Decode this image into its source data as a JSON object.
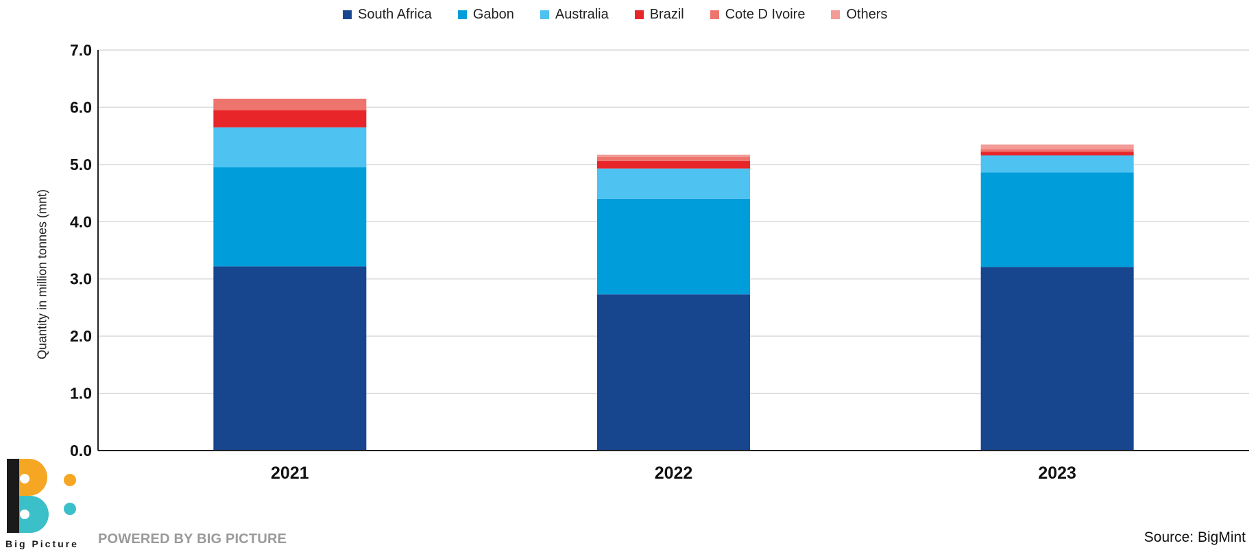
{
  "chart_data": {
    "type": "bar",
    "stacked": true,
    "categories": [
      "2021",
      "2022",
      "2023"
    ],
    "series": [
      {
        "name": "South Africa",
        "color": "#17468f",
        "values": [
          3.22,
          2.73,
          3.21
        ]
      },
      {
        "name": "Gabon",
        "color": "#009ddb",
        "values": [
          1.73,
          1.67,
          1.65
        ]
      },
      {
        "name": "Australia",
        "color": "#4ec2f0",
        "values": [
          0.7,
          0.53,
          0.3
        ]
      },
      {
        "name": "Brazil",
        "color": "#e8262a",
        "values": [
          0.3,
          0.13,
          0.06
        ]
      },
      {
        "name": "Cote D Ivoire",
        "color": "#ee746e",
        "values": [
          0.2,
          0.07,
          0.05
        ]
      },
      {
        "name": "Others",
        "color": "#f39b97",
        "values": [
          0.0,
          0.04,
          0.08
        ]
      }
    ],
    "ylabel": "Quantity in million tonnes (mnt)",
    "xlabel": "",
    "ylim": [
      0,
      7
    ],
    "yticks": [
      "0.0",
      "1.0",
      "2.0",
      "3.0",
      "4.0",
      "5.0",
      "6.0",
      "7.0"
    ],
    "grid": true,
    "legend_position": "top"
  },
  "footer": {
    "powered_by": "POWERED BY BIG PICTURE",
    "source": "Source: BigMint"
  },
  "logo": {
    "text": "Big Picture",
    "colors": [
      "#1a1a1a",
      "#f5a623",
      "#3bbfc8"
    ]
  }
}
